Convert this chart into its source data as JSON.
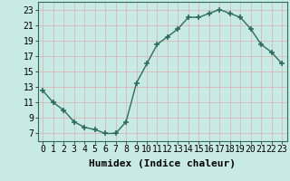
{
  "x": [
    0,
    1,
    2,
    3,
    4,
    5,
    6,
    7,
    8,
    9,
    10,
    11,
    12,
    13,
    14,
    15,
    16,
    17,
    18,
    19,
    20,
    21,
    22,
    23
  ],
  "y": [
    12.5,
    11.0,
    10.0,
    8.5,
    7.8,
    7.5,
    7.0,
    7.0,
    8.5,
    13.5,
    16.0,
    18.5,
    19.5,
    20.5,
    22.0,
    22.0,
    22.5,
    23.0,
    22.5,
    22.0,
    20.5,
    18.5,
    17.5,
    16.0
  ],
  "xlim": [
    -0.5,
    23.5
  ],
  "ylim": [
    6,
    24
  ],
  "yticks": [
    7,
    9,
    11,
    13,
    15,
    17,
    19,
    21,
    23
  ],
  "xticks": [
    0,
    1,
    2,
    3,
    4,
    5,
    6,
    7,
    8,
    9,
    10,
    11,
    12,
    13,
    14,
    15,
    16,
    17,
    18,
    19,
    20,
    21,
    22,
    23
  ],
  "xlabel": "Humidex (Indice chaleur)",
  "line_color": "#2e6b5e",
  "marker": "+",
  "marker_size": 5,
  "bg_color": "#c8eae4",
  "grid_color": "#b0d8d0",
  "tick_label_fontsize": 7,
  "xlabel_fontsize": 8
}
